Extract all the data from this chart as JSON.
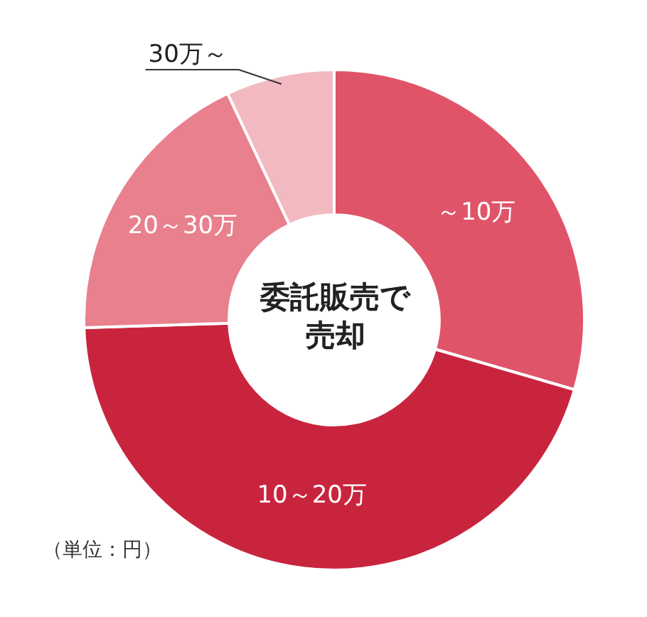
{
  "chart_data": {
    "type": "donut",
    "title": "委託販売で売却",
    "categories": [
      "～10万",
      "10～20万",
      "20～30万",
      "30万～"
    ],
    "values": [
      29.5,
      45,
      18.5,
      7
    ],
    "colors": [
      "#e05469",
      "#c9243e",
      "#e8808e",
      "#f3b9c1"
    ],
    "legend": false,
    "annotations": [
      "（単位：円）"
    ]
  }
}
